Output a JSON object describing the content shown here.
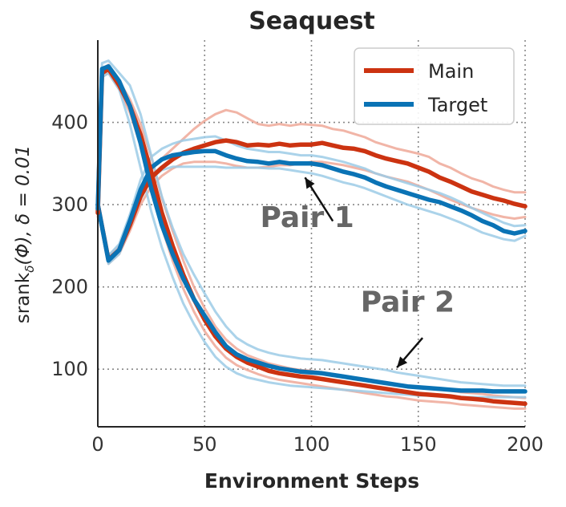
{
  "chart_data": {
    "type": "line",
    "title": "Seaquest",
    "xlabel": "Environment Steps",
    "ylabel": "srank_δ(Φ), δ = 0.01",
    "ylabel_parts": {
      "base": "srank",
      "sub": "δ",
      "rest": "(Φ), δ = 0.01"
    },
    "xlim": [
      0,
      200
    ],
    "ylim": [
      30,
      500
    ],
    "xticks": [
      0,
      50,
      100,
      150,
      200
    ],
    "yticks": [
      100,
      200,
      300,
      400
    ],
    "x_tick_labels": [
      "0",
      "50",
      "100",
      "150",
      "200"
    ],
    "y_tick_labels": [
      "100",
      "200",
      "300",
      "400"
    ],
    "grid": "dotted",
    "legend": {
      "placement": "top-right",
      "entries": [
        "Main",
        "Target"
      ]
    },
    "colors": {
      "Main": "#cc3311",
      "Target": "#0a73b5",
      "Main_light": "#eea898",
      "Target_light": "#9ccbe6"
    },
    "annotations": [
      {
        "label": "Pair 1",
        "text_at": [
          98,
          273
        ],
        "arrow_from": [
          110,
          280
        ],
        "arrow_to": [
          97,
          333
        ]
      },
      {
        "label": "Pair 2",
        "text_at": [
          145,
          170
        ],
        "arrow_from": [
          152,
          138
        ],
        "arrow_to": [
          140,
          102
        ]
      }
    ],
    "series": [
      {
        "name": "Main",
        "pair": 1,
        "x": [
          0,
          5,
          10,
          15,
          20,
          25,
          30,
          35,
          40,
          45,
          50,
          55,
          60,
          65,
          70,
          75,
          80,
          85,
          90,
          95,
          100,
          105,
          110,
          115,
          120,
          125,
          130,
          135,
          140,
          145,
          150,
          155,
          160,
          165,
          170,
          175,
          180,
          185,
          190,
          195,
          200
        ],
        "y": [
          300,
          233,
          245,
          275,
          310,
          333,
          345,
          355,
          363,
          368,
          372,
          376,
          378,
          376,
          372,
          373,
          372,
          374,
          372,
          373,
          373,
          375,
          372,
          369,
          368,
          365,
          360,
          356,
          353,
          350,
          345,
          340,
          333,
          328,
          322,
          316,
          312,
          308,
          305,
          301,
          298
        ],
        "band_low": [
          295,
          228,
          240,
          268,
          300,
          322,
          335,
          344,
          350,
          352,
          352,
          352,
          350,
          347,
          345,
          345,
          346,
          348,
          348,
          350,
          352,
          352,
          350,
          348,
          345,
          342,
          338,
          334,
          331,
          328,
          323,
          318,
          312,
          306,
          301,
          296,
          292,
          288,
          285,
          283,
          285
        ],
        "band_high": [
          305,
          238,
          250,
          282,
          318,
          342,
          356,
          368,
          380,
          392,
          402,
          410,
          415,
          412,
          405,
          398,
          396,
          398,
          396,
          398,
          397,
          396,
          392,
          390,
          386,
          382,
          376,
          372,
          368,
          365,
          362,
          358,
          350,
          345,
          338,
          332,
          328,
          322,
          318,
          315,
          315
        ]
      },
      {
        "name": "Target",
        "pair": 1,
        "x": [
          0,
          5,
          10,
          15,
          20,
          25,
          30,
          35,
          40,
          45,
          50,
          55,
          60,
          65,
          70,
          75,
          80,
          85,
          90,
          95,
          100,
          105,
          110,
          115,
          120,
          125,
          130,
          135,
          140,
          145,
          150,
          155,
          160,
          165,
          170,
          175,
          180,
          185,
          190,
          195,
          200
        ],
        "y": [
          300,
          232,
          245,
          280,
          318,
          345,
          355,
          360,
          362,
          364,
          365,
          365,
          360,
          356,
          353,
          352,
          350,
          352,
          350,
          350,
          350,
          348,
          344,
          340,
          337,
          333,
          327,
          322,
          318,
          314,
          310,
          306,
          303,
          298,
          293,
          287,
          280,
          275,
          268,
          265,
          268
        ],
        "band_low": [
          295,
          228,
          240,
          272,
          306,
          332,
          342,
          346,
          346,
          346,
          346,
          346,
          345,
          345,
          345,
          345,
          344,
          344,
          342,
          340,
          338,
          335,
          331,
          327,
          324,
          320,
          315,
          310,
          305,
          300,
          296,
          292,
          288,
          283,
          278,
          272,
          266,
          262,
          258,
          256,
          262
        ],
        "band_high": [
          305,
          238,
          252,
          288,
          330,
          358,
          368,
          374,
          378,
          380,
          382,
          383,
          378,
          372,
          368,
          366,
          364,
          364,
          362,
          360,
          360,
          358,
          355,
          352,
          348,
          344,
          338,
          334,
          330,
          326,
          322,
          318,
          314,
          309,
          303,
          296,
          290,
          284,
          278,
          274,
          275
        ]
      },
      {
        "name": "Main",
        "pair": 2,
        "x": [
          0,
          2,
          5,
          10,
          15,
          20,
          25,
          30,
          35,
          40,
          45,
          50,
          55,
          60,
          65,
          70,
          75,
          80,
          85,
          90,
          95,
          100,
          105,
          110,
          115,
          120,
          125,
          130,
          135,
          140,
          145,
          150,
          155,
          160,
          165,
          170,
          175,
          180,
          185,
          190,
          195,
          200
        ],
        "y": [
          290,
          460,
          465,
          445,
          420,
          385,
          340,
          290,
          250,
          215,
          185,
          160,
          140,
          125,
          115,
          108,
          103,
          98,
          95,
          93,
          91,
          90,
          88,
          86,
          84,
          82,
          80,
          78,
          76,
          74,
          72,
          70,
          69,
          68,
          67,
          65,
          64,
          63,
          61,
          60,
          59,
          58
        ],
        "band_low": [
          285,
          455,
          460,
          440,
          412,
          372,
          322,
          272,
          232,
          198,
          170,
          146,
          128,
          114,
          105,
          99,
          94,
          90,
          87,
          85,
          83,
          81,
          79,
          77,
          75,
          73,
          71,
          69,
          67,
          66,
          64,
          62,
          61,
          60,
          59,
          57,
          56,
          55,
          54,
          53,
          52,
          52
        ],
        "band_high": [
          295,
          465,
          470,
          450,
          428,
          398,
          358,
          308,
          268,
          232,
          200,
          174,
          152,
          136,
          125,
          117,
          112,
          107,
          104,
          101,
          99,
          98,
          96,
          94,
          92,
          90,
          88,
          86,
          84,
          82,
          80,
          78,
          77,
          76,
          74,
          72,
          71,
          70,
          68,
          67,
          66,
          65
        ]
      },
      {
        "name": "Target",
        "pair": 2,
        "x": [
          0,
          2,
          5,
          10,
          15,
          20,
          25,
          30,
          35,
          40,
          45,
          50,
          55,
          60,
          65,
          70,
          75,
          80,
          85,
          90,
          95,
          100,
          105,
          110,
          115,
          120,
          125,
          130,
          135,
          140,
          145,
          150,
          155,
          160,
          165,
          170,
          175,
          180,
          185,
          190,
          195,
          200
        ],
        "y": [
          295,
          465,
          468,
          450,
          420,
          375,
          320,
          275,
          240,
          210,
          185,
          165,
          145,
          128,
          118,
          112,
          108,
          104,
          101,
          99,
          97,
          96,
          95,
          93,
          91,
          89,
          87,
          85,
          83,
          81,
          79,
          78,
          77,
          76,
          75,
          74,
          74,
          74,
          73,
          73,
          73,
          73
        ],
        "band_low": [
          290,
          455,
          460,
          440,
          398,
          345,
          292,
          248,
          212,
          180,
          155,
          133,
          115,
          103,
          95,
          90,
          87,
          84,
          82,
          80,
          79,
          78,
          77,
          76,
          75,
          74,
          73,
          72,
          71,
          70,
          69,
          68,
          68,
          67,
          67,
          66,
          66,
          66,
          66,
          66,
          66,
          66
        ],
        "band_high": [
          300,
          472,
          475,
          460,
          445,
          410,
          360,
          310,
          272,
          240,
          215,
          192,
          170,
          152,
          138,
          130,
          124,
          120,
          117,
          115,
          113,
          112,
          111,
          109,
          107,
          105,
          103,
          101,
          99,
          96,
          94,
          92,
          90,
          88,
          86,
          84,
          83,
          82,
          81,
          80,
          80,
          80
        ]
      }
    ]
  }
}
